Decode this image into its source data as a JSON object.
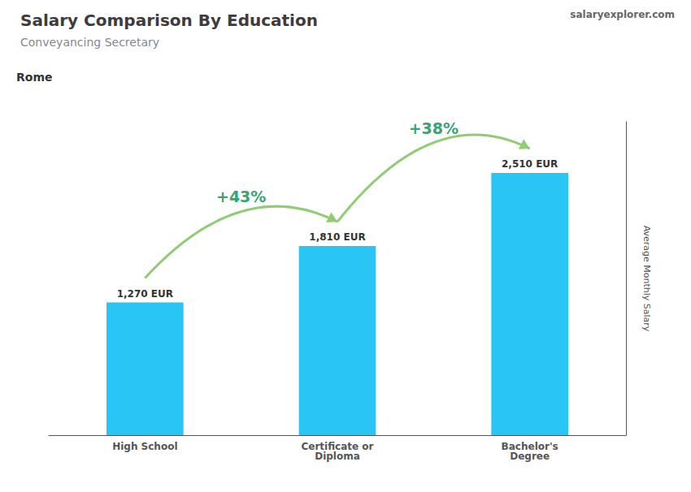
{
  "chart_data": {
    "type": "bar",
    "title": "Salary Comparison By Education",
    "subtitle": "Conveyancing Secretary",
    "categories": [
      "High School",
      "Certificate or\nDiploma",
      "Bachelor's\nDegree"
    ],
    "values": [
      1270,
      1810,
      2510
    ],
    "value_labels": [
      "1,270 EUR",
      "1,810 EUR",
      "2,510 EUR"
    ],
    "data_labels": true,
    "color": "#29c5f5",
    "ylabel": "Average Monthly Salary",
    "ylim": [
      0,
      3000
    ],
    "tick_labels": "x",
    "grid": false,
    "annotations": [
      {
        "text": "Rome"
      },
      {
        "text": "salaryexplorer.com"
      },
      {
        "text": "+43%",
        "between": [
          0,
          1
        ]
      },
      {
        "text": "+38%",
        "between": [
          1,
          2
        ]
      }
    ]
  }
}
